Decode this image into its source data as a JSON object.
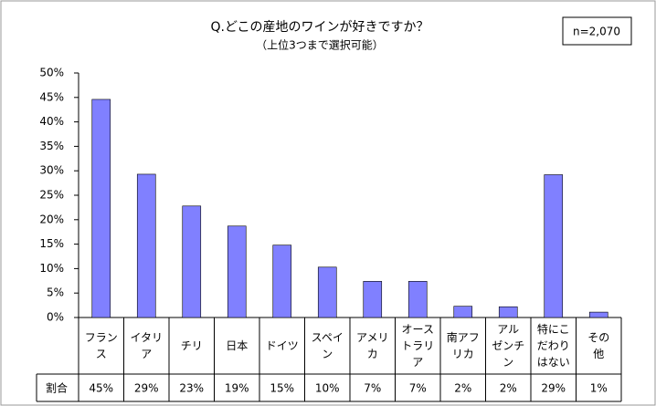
{
  "chart_data": {
    "type": "bar",
    "title": "Q.どこの産地のワインが好きですか？",
    "subtitle": "（上位3つまで選択可能）",
    "annotation": "n=2,070",
    "row_label": "割合",
    "categories": [
      "フラン\nス",
      "イタリ\nア",
      "チリ",
      "日本",
      "ドイツ",
      "スペイ\nン",
      "アメリ\nカ",
      "オース\nトラリ\nア",
      "南アフ\nリカ",
      "アル\nゼンチ\nン",
      "特にこ\nだわり\nはない",
      "その\n他"
    ],
    "values": [
      44.6,
      29.3,
      22.8,
      18.7,
      14.8,
      10.3,
      7.4,
      7.4,
      2.3,
      2.2,
      29.2,
      1.1
    ],
    "value_labels": [
      "45%",
      "29%",
      "23%",
      "19%",
      "15%",
      "10%",
      "7%",
      "7%",
      "2%",
      "2%",
      "29%",
      "1%"
    ],
    "color": "#8080ff",
    "ylim": [
      0,
      50
    ],
    "yticks": [
      {
        "value": 0,
        "label": "0%"
      },
      {
        "value": 5,
        "label": "5%"
      },
      {
        "value": 10,
        "label": "10%"
      },
      {
        "value": 15,
        "label": "15%"
      },
      {
        "value": 20,
        "label": "20%"
      },
      {
        "value": 25,
        "label": "25%"
      },
      {
        "value": 30,
        "label": "30%"
      },
      {
        "value": 35,
        "label": "35%"
      },
      {
        "value": 40,
        "label": "40%"
      },
      {
        "value": 45,
        "label": "45%"
      },
      {
        "value": 50,
        "label": "50%"
      }
    ],
    "grid": false
  }
}
